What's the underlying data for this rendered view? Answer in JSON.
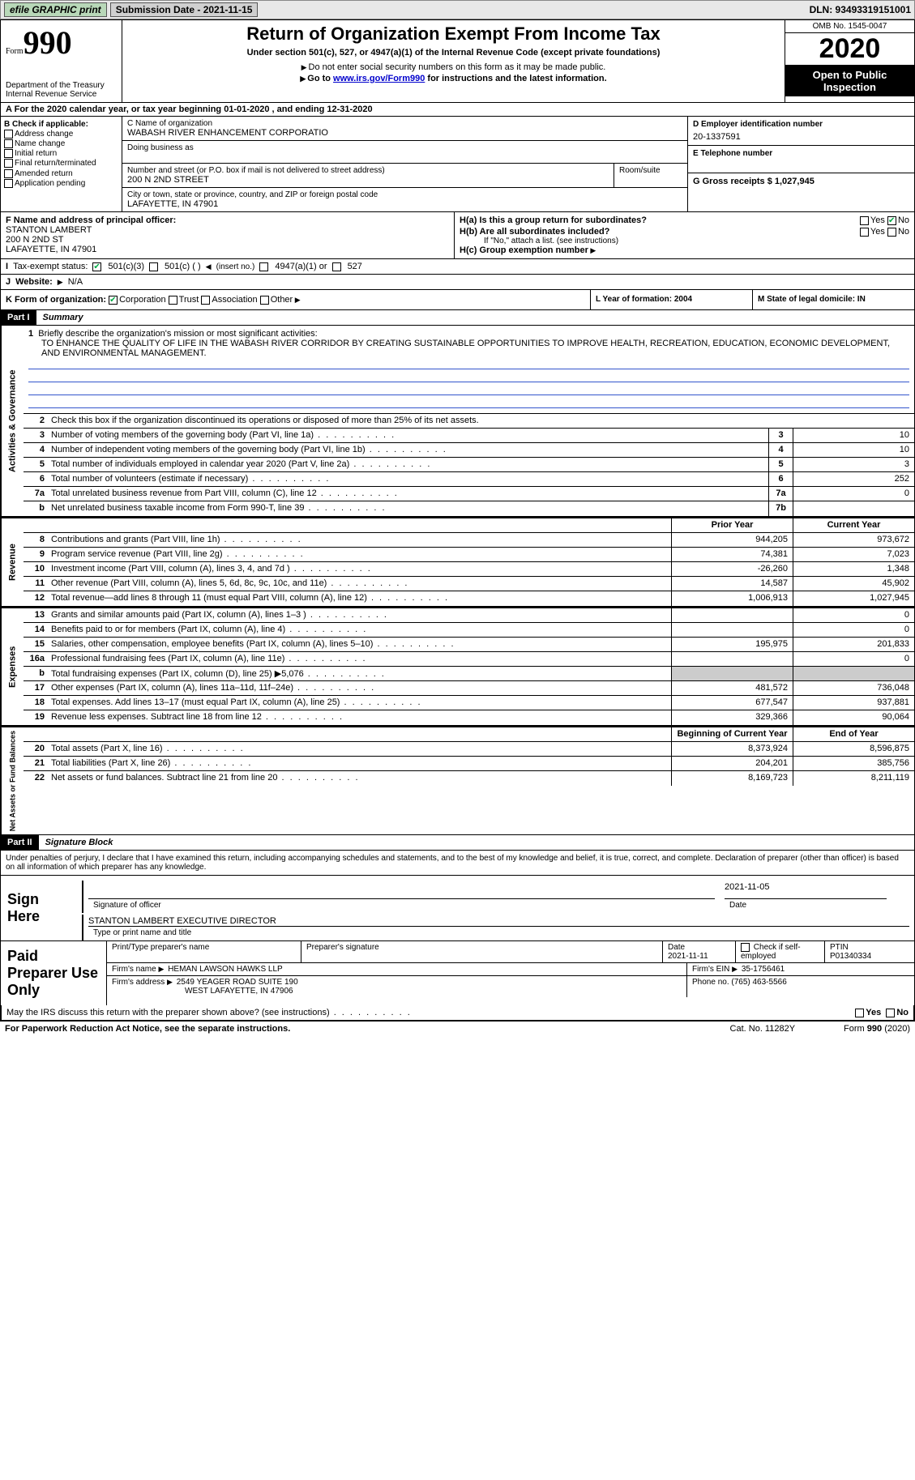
{
  "topbar": {
    "efile": "efile GRAPHIC print",
    "submission_label": "Submission Date - 2021-11-15",
    "dln": "DLN: 93493319151001"
  },
  "header": {
    "form_label": "Form",
    "form_no": "990",
    "dept": "Department of the Treasury",
    "irs": "Internal Revenue Service",
    "title": "Return of Organization Exempt From Income Tax",
    "subtitle": "Under section 501(c), 527, or 4947(a)(1) of the Internal Revenue Code (except private foundations)",
    "note1": "Do not enter social security numbers on this form as it may be made public.",
    "note2_pre": "Go to ",
    "note2_link": "www.irs.gov/Form990",
    "note2_post": " for instructions and the latest information.",
    "omb": "OMB No. 1545-0047",
    "year": "2020",
    "otp": "Open to Public Inspection"
  },
  "row_a": "For the 2020 calendar year, or tax year beginning 01-01-2020   , and ending 12-31-2020",
  "sec_b": {
    "title": "B Check if applicable:",
    "items": [
      "Address change",
      "Name change",
      "Initial return",
      "Final return/terminated",
      "Amended return",
      "Application pending"
    ]
  },
  "sec_c": {
    "name_label": "C Name of organization",
    "org_name": "WABASH RIVER ENHANCEMENT CORPORATIO",
    "dba_label": "Doing business as",
    "addr_label": "Number and street (or P.O. box if mail is not delivered to street address)",
    "addr": "200 N 2ND STREET",
    "room_label": "Room/suite",
    "city_label": "City or town, state or province, country, and ZIP or foreign postal code",
    "city": "LAFAYETTE, IN  47901"
  },
  "sec_d": {
    "ein_label": "D Employer identification number",
    "ein": "20-1337591",
    "tel_label": "E Telephone number",
    "gross_label": "G Gross receipts $ 1,027,945"
  },
  "sec_f": {
    "label": "F  Name and address of principal officer:",
    "name": "STANTON LAMBERT",
    "addr1": "200 N 2ND ST",
    "addr2": "LAFAYETTE, IN  47901"
  },
  "sec_h": {
    "ha": "H(a)  Is this a group return for subordinates?",
    "hb": "H(b)  Are all subordinates included?",
    "hb_note": "If \"No,\" attach a list. (see instructions)",
    "hc": "H(c)  Group exemption number",
    "yes": "Yes",
    "no": "No"
  },
  "row_i": {
    "label": "Tax-exempt status:",
    "o501c3": "501(c)(3)",
    "o501c": "501(c) (  )",
    "insert": "(insert no.)",
    "o4947": "4947(a)(1) or",
    "o527": "527"
  },
  "row_j": {
    "label": "Website:",
    "val": "N/A"
  },
  "row_k": {
    "label": "K Form of organization:",
    "corp": "Corporation",
    "trust": "Trust",
    "assoc": "Association",
    "other": "Other"
  },
  "row_l": {
    "label": "L Year of formation: 2004"
  },
  "row_m": {
    "label": "M State of legal domicile: IN"
  },
  "part1": {
    "bar": "Part I",
    "title": "Summary",
    "l1": "Briefly describe the organization's mission or most significant activities:",
    "mission": "TO ENHANCE THE QUALITY OF LIFE IN THE WABASH RIVER CORRIDOR BY CREATING SUSTAINABLE OPPORTUNITIES TO IMPROVE HEALTH, RECREATION, EDUCATION, ECONOMIC DEVELOPMENT, AND ENVIRONMENTAL MANAGEMENT.",
    "l2": "Check this box    if the organization discontinued its operations or disposed of more than 25% of its net assets.",
    "hdr_prior": "Prior Year",
    "hdr_curr": "Current Year",
    "hdr_boy": "Beginning of Current Year",
    "hdr_eoy": "End of Year",
    "lines_gov": [
      {
        "n": "3",
        "d": "Number of voting members of the governing body (Part VI, line 1a)",
        "c": "3",
        "v": "10"
      },
      {
        "n": "4",
        "d": "Number of independent voting members of the governing body (Part VI, line 1b)",
        "c": "4",
        "v": "10"
      },
      {
        "n": "5",
        "d": "Total number of individuals employed in calendar year 2020 (Part V, line 2a)",
        "c": "5",
        "v": "3"
      },
      {
        "n": "6",
        "d": "Total number of volunteers (estimate if necessary)",
        "c": "6",
        "v": "252"
      },
      {
        "n": "7a",
        "d": "Total unrelated business revenue from Part VIII, column (C), line 12",
        "c": "7a",
        "v": "0"
      },
      {
        "n": "b",
        "d": "Net unrelated business taxable income from Form 990-T, line 39",
        "c": "7b",
        "v": ""
      }
    ],
    "lines_rev": [
      {
        "n": "8",
        "d": "Contributions and grants (Part VIII, line 1h)",
        "p": "944,205",
        "c": "973,672"
      },
      {
        "n": "9",
        "d": "Program service revenue (Part VIII, line 2g)",
        "p": "74,381",
        "c": "7,023"
      },
      {
        "n": "10",
        "d": "Investment income (Part VIII, column (A), lines 3, 4, and 7d )",
        "p": "-26,260",
        "c": "1,348"
      },
      {
        "n": "11",
        "d": "Other revenue (Part VIII, column (A), lines 5, 6d, 8c, 9c, 10c, and 11e)",
        "p": "14,587",
        "c": "45,902"
      },
      {
        "n": "12",
        "d": "Total revenue—add lines 8 through 11 (must equal Part VIII, column (A), line 12)",
        "p": "1,006,913",
        "c": "1,027,945"
      }
    ],
    "lines_exp": [
      {
        "n": "13",
        "d": "Grants and similar amounts paid (Part IX, column (A), lines 1–3 )",
        "p": "",
        "c": "0"
      },
      {
        "n": "14",
        "d": "Benefits paid to or for members (Part IX, column (A), line 4)",
        "p": "",
        "c": "0"
      },
      {
        "n": "15",
        "d": "Salaries, other compensation, employee benefits (Part IX, column (A), lines 5–10)",
        "p": "195,975",
        "c": "201,833"
      },
      {
        "n": "16a",
        "d": "Professional fundraising fees (Part IX, column (A), line 11e)",
        "p": "",
        "c": "0"
      },
      {
        "n": "b",
        "d": "Total fundraising expenses (Part IX, column (D), line 25) ▶5,076",
        "p": "shade",
        "c": "shade"
      },
      {
        "n": "17",
        "d": "Other expenses (Part IX, column (A), lines 11a–11d, 11f–24e)",
        "p": "481,572",
        "c": "736,048"
      },
      {
        "n": "18",
        "d": "Total expenses. Add lines 13–17 (must equal Part IX, column (A), line 25)",
        "p": "677,547",
        "c": "937,881"
      },
      {
        "n": "19",
        "d": "Revenue less expenses. Subtract line 18 from line 12",
        "p": "329,366",
        "c": "90,064"
      }
    ],
    "lines_net": [
      {
        "n": "20",
        "d": "Total assets (Part X, line 16)",
        "p": "8,373,924",
        "c": "8,596,875"
      },
      {
        "n": "21",
        "d": "Total liabilities (Part X, line 26)",
        "p": "204,201",
        "c": "385,756"
      },
      {
        "n": "22",
        "d": "Net assets or fund balances. Subtract line 21 from line 20",
        "p": "8,169,723",
        "c": "8,211,119"
      }
    ],
    "side_gov": "Activities & Governance",
    "side_rev": "Revenue",
    "side_exp": "Expenses",
    "side_net": "Net Assets or Fund Balances"
  },
  "part2": {
    "bar": "Part II",
    "title": "Signature Block",
    "decl": "Under penalties of perjury, I declare that I have examined this return, including accompanying schedules and statements, and to the best of my knowledge and belief, it is true, correct, and complete. Declaration of preparer (other than officer) is based on all information of which preparer has any knowledge.",
    "sign_here": "Sign Here",
    "sig_officer": "Signature of officer",
    "sig_date": "2021-11-05",
    "date_label": "Date",
    "name_title": "STANTON LAMBERT EXECUTIVE DIRECTOR",
    "type_label": "Type or print name and title",
    "paid": "Paid Preparer Use Only",
    "prep_name_label": "Print/Type preparer's name",
    "prep_sig_label": "Preparer's signature",
    "prep_date_label": "Date",
    "prep_date": "2021-11-11",
    "prep_check": "Check        if self-employed",
    "ptin_label": "PTIN",
    "ptin": "P01340334",
    "firm_name_label": "Firm's name   ",
    "firm_name": "HEMAN LAWSON HAWKS LLP",
    "firm_ein_label": "Firm's EIN ",
    "firm_ein": "35-1756461",
    "firm_addr_label": "Firm's address ",
    "firm_addr1": "2549 YEAGER ROAD SUITE 190",
    "firm_addr2": "WEST LAFAYETTE, IN  47906",
    "phone_label": "Phone no. (765) 463-5566",
    "may_irs": "May the IRS discuss this return with the preparer shown above? (see instructions)",
    "yes": "Yes",
    "no": "No"
  },
  "footer": {
    "pra": "For Paperwork Reduction Act Notice, see the separate instructions.",
    "cat": "Cat. No. 11282Y",
    "form": "Form 990 (2020)"
  }
}
